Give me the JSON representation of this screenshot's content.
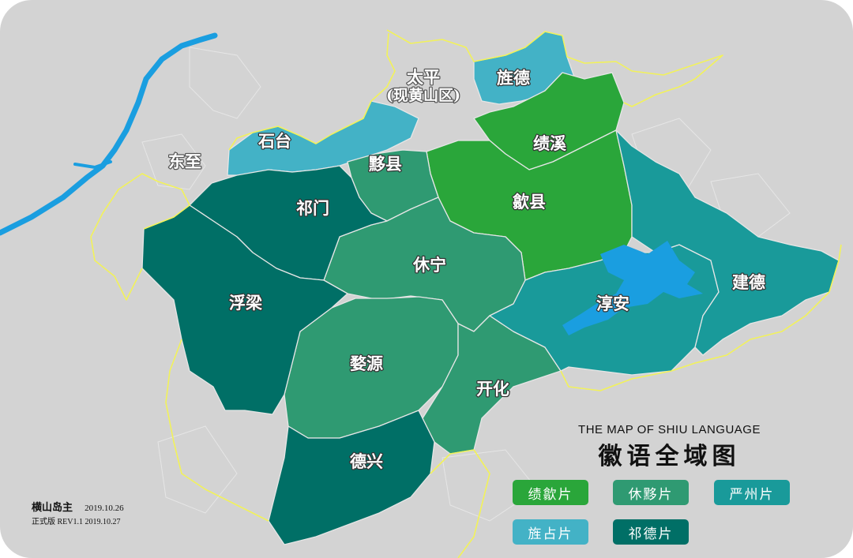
{
  "map": {
    "title_en": "THE MAP OF SHIU LANGUAGE",
    "title_zh": "徽语全域图",
    "colors": {
      "background": "#d3d3d3",
      "jixi_pian": "#2aa63a",
      "xiuyi_pian": "#2f9a72",
      "yanzhou_pian": "#199a9a",
      "jingzhan_pian": "#43b2c6",
      "qide_pian": "#006f66",
      "water": "#1a9ee0",
      "boundary": "#f2f25a"
    },
    "regions": [
      {
        "id": "taiping",
        "label": "太平\n(现黄山区)"
      },
      {
        "id": "jingde",
        "label": "旌德"
      },
      {
        "id": "shitai",
        "label": "石台"
      },
      {
        "id": "dongzhi",
        "label": "东至"
      },
      {
        "id": "jixi",
        "label": "绩溪"
      },
      {
        "id": "yixian",
        "label": "黟县"
      },
      {
        "id": "qimen",
        "label": "祁门"
      },
      {
        "id": "shexian",
        "label": "歙县"
      },
      {
        "id": "xiuning",
        "label": "休宁"
      },
      {
        "id": "fuliang",
        "label": "浮梁"
      },
      {
        "id": "chunan",
        "label": "淳安"
      },
      {
        "id": "jiande",
        "label": "建德"
      },
      {
        "id": "wuyuan",
        "label": "婺源"
      },
      {
        "id": "kaihua",
        "label": "开化"
      },
      {
        "id": "dexing",
        "label": "德兴"
      }
    ],
    "labels": {
      "taiping_line1": "太平",
      "taiping_line2": "(现黄山区)",
      "jingde": "旌德",
      "shitai": "石台",
      "dongzhi": "东至",
      "jixi": "绩溪",
      "yixian": "黟县",
      "qimen": "祁门",
      "shexian": "歙县",
      "xiuning": "休宁",
      "fuliang": "浮梁",
      "chunan": "淳安",
      "jiande": "建德",
      "wuyuan": "婺源",
      "kaihua": "开化",
      "dexing": "德兴"
    }
  },
  "legend": [
    {
      "label": "绩歙片",
      "color": "#2aa63a"
    },
    {
      "label": "休黟片",
      "color": "#2f9a72"
    },
    {
      "label": "严州片",
      "color": "#199a9a"
    },
    {
      "label": "旌占片",
      "color": "#43b2c6"
    },
    {
      "label": "祁德片",
      "color": "#006f66"
    }
  ],
  "credit": {
    "author": "横山岛主",
    "date1": "2019.10.26",
    "version": "正式版 REV1.1 2019.10.27"
  }
}
